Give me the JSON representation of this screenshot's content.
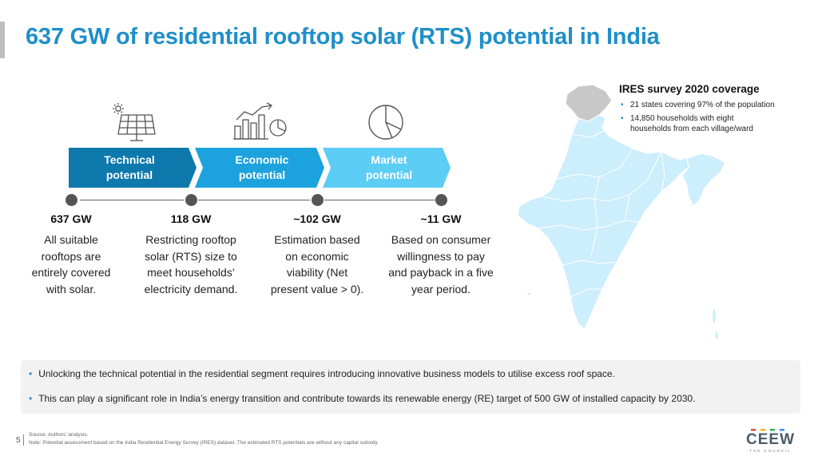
{
  "title": "637 GW of residential rooftop solar (RTS) potential in India",
  "icons": {
    "solar_panel": "solar-panel-icon",
    "growth_chart": "growth-chart-icon",
    "pie_chart": "pie-chart-icon"
  },
  "stages": [
    {
      "line1": "Technical",
      "line2": "potential",
      "color": "#0d79ad"
    },
    {
      "line1": "Economic",
      "line2": "potential",
      "color": "#1ca3dd"
    },
    {
      "line1": "Market",
      "line2": "potential",
      "color": "#5ccdf5"
    }
  ],
  "potentials": [
    {
      "value": "637 GW",
      "desc": [
        "All suitable",
        "rooftops are",
        "entirely covered",
        "with solar."
      ]
    },
    {
      "value": "118 GW",
      "desc": [
        "Restricting rooftop",
        "solar (RTS) size to",
        "meet households’",
        "electricity demand."
      ]
    },
    {
      "value": "~102 GW",
      "desc": [
        "Estimation based",
        "on economic",
        "viability (Net",
        "present value > 0)."
      ]
    },
    {
      "value": "~11 GW",
      "desc": [
        "Based on consumer",
        "willingness to pay",
        "and payback in a five",
        "year period."
      ]
    }
  ],
  "survey": {
    "heading": "IRES survey 2020 coverage",
    "items": [
      [
        "21 states covering 97% of the population"
      ],
      [
        "14,850 households with eight",
        "households from each village/ward"
      ]
    ]
  },
  "bullets": [
    "Unlocking the technical potential in the residential segment requires introducing innovative business models to utilise excess roof space.",
    "This can play a significant role in India’s energy transition and contribute towards its renewable energy (RE) target of 500 GW of installed capacity by 2030."
  ],
  "page_number": "5",
  "source": "Source: Authors’ analysis.",
  "note": "Note: Potential assessment based on the India Residential Energy Survey (IRES) dataset. The estimated RTS potentials are without any capital subsidy.",
  "logo": {
    "word": "CEEW",
    "sub": "THE COUNCIL"
  },
  "colors": {
    "accent": "#1f8fc9",
    "map_fill": "#cdeefc",
    "map_grey": "#c8c8c8"
  }
}
